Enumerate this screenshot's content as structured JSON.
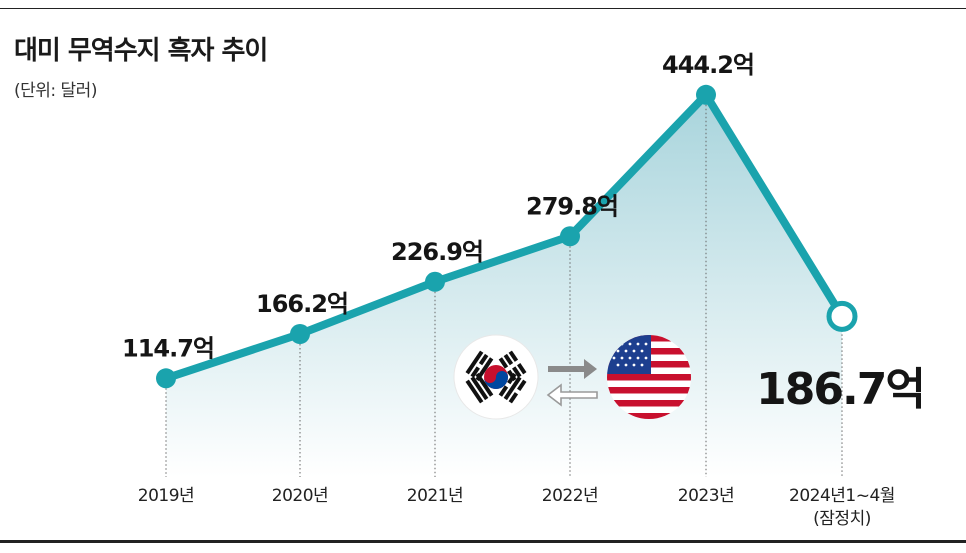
{
  "title": "대미 무역수지 흑자 추이",
  "unit_note": "(단위: 달러)",
  "chart_data": {
    "type": "line",
    "title": "대미 무역수지 흑자 추이",
    "subtitle": "(단위: 달러)",
    "categories": [
      "2019년",
      "2020년",
      "2021년",
      "2022년",
      "2023년",
      "2024년1~4월"
    ],
    "category_notes": [
      "",
      "",
      "",
      "",
      "",
      "(잠정치)"
    ],
    "values": [
      114.7,
      166.2,
      226.9,
      279.8,
      444.2,
      186.7
    ],
    "value_labels": [
      "114.7억",
      "166.2억",
      "226.9억",
      "279.8억",
      "444.2억",
      "186.7억"
    ],
    "ylim": [
      0,
      480
    ],
    "grid": false,
    "highlight_last": true,
    "colors": {
      "line": "#1aa3ad",
      "area_top": "#a8d4dc",
      "area_bottom": "#ffffff",
      "text": "#151515"
    },
    "icons": [
      "korea-flag-icon",
      "exchange-arrows-icon",
      "usa-flag-icon"
    ]
  }
}
